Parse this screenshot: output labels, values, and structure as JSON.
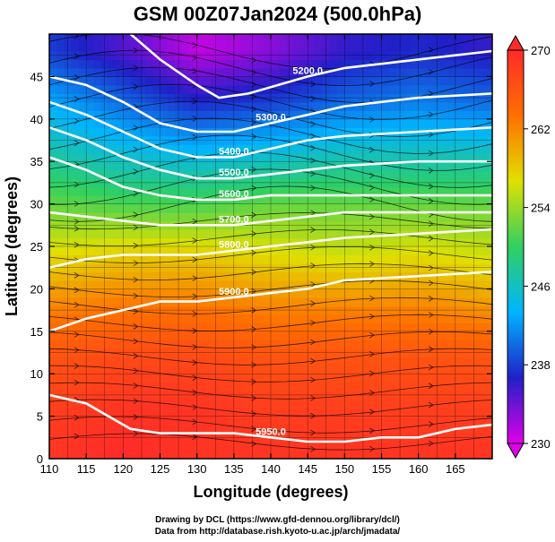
{
  "title": "GSM 00Z07Jan2024 (500.0hPa)",
  "credits": {
    "line1": "Drawing by DCL (https://www.gfd-dennou.org/library/dcl/)",
    "line2": "Data from http://database.rish.kyoto-u.ac.jp/arch/jmadata/"
  },
  "chart_data": {
    "type": "heatmap",
    "title": "GSM 00Z07Jan2024 (500.0hPa)",
    "xlabel": "Longitude (degrees)",
    "ylabel": "Latitude  (degrees)",
    "xlim": [
      110,
      170
    ],
    "ylim": [
      0,
      50
    ],
    "x_ticks": [
      110,
      115,
      120,
      125,
      130,
      135,
      140,
      145,
      150,
      155,
      160,
      165
    ],
    "y_ticks": [
      0,
      5,
      10,
      15,
      20,
      25,
      30,
      35,
      40,
      45
    ],
    "grid": true,
    "colorbar": {
      "range": [
        230,
        270
      ],
      "ticks": [
        230,
        238,
        246,
        254,
        262,
        270
      ],
      "colors": [
        "#e000e8",
        "#2020c8",
        "#00b4ff",
        "#30d060",
        "#e0e000",
        "#ff7000",
        "#ff2a2a"
      ]
    },
    "field": [
      [
        238,
        235,
        231,
        233,
        236,
        237,
        236
      ],
      [
        243,
        240,
        237,
        238,
        240,
        241,
        240
      ],
      [
        247,
        245,
        244,
        245,
        246,
        246,
        246
      ],
      [
        252,
        251,
        251,
        252,
        252,
        252,
        252
      ],
      [
        257,
        258,
        258,
        257,
        256,
        257,
        256
      ],
      [
        262,
        263,
        263,
        262,
        262,
        262,
        261
      ],
      [
        266,
        267,
        267,
        266,
        266,
        266,
        266
      ],
      [
        268,
        269,
        269,
        268,
        268,
        268,
        268
      ],
      [
        269,
        270,
        269,
        269,
        269,
        269,
        269
      ]
    ],
    "field_lats": [
      48,
      42,
      36,
      30,
      24,
      18,
      12,
      6,
      0
    ],
    "field_lons": [
      110,
      120,
      130,
      140,
      150,
      160,
      170
    ],
    "height_contours": [
      {
        "label": "5200.0",
        "points": [
          [
            121,
            50
          ],
          [
            125,
            47
          ],
          [
            130,
            44
          ],
          [
            133,
            42.5
          ],
          [
            137,
            43
          ],
          [
            141,
            44
          ],
          [
            145,
            45
          ],
          [
            150,
            46
          ],
          [
            155,
            46.5
          ],
          [
            160,
            47
          ],
          [
            165,
            47.5
          ],
          [
            170,
            48
          ]
        ]
      },
      {
        "label": "5300.0",
        "points": [
          [
            110,
            45
          ],
          [
            115,
            44
          ],
          [
            120,
            42
          ],
          [
            125,
            39.5
          ],
          [
            130,
            38.5
          ],
          [
            135,
            38.5
          ],
          [
            140,
            39.5
          ],
          [
            145,
            40.5
          ],
          [
            150,
            41.5
          ],
          [
            155,
            42
          ],
          [
            160,
            42.5
          ],
          [
            170,
            43
          ]
        ]
      },
      {
        "label": "5400.0",
        "points": [
          [
            110,
            42
          ],
          [
            115,
            40.5
          ],
          [
            120,
            38.5
          ],
          [
            125,
            36.5
          ],
          [
            130,
            35.5
          ],
          [
            135,
            35.5
          ],
          [
            140,
            36.5
          ],
          [
            145,
            37.5
          ],
          [
            150,
            38
          ],
          [
            160,
            38.5
          ],
          [
            170,
            39
          ]
        ]
      },
      {
        "label": "5500.0",
        "points": [
          [
            110,
            39
          ],
          [
            115,
            37.5
          ],
          [
            120,
            35.5
          ],
          [
            125,
            34
          ],
          [
            130,
            33
          ],
          [
            135,
            33
          ],
          [
            140,
            33.5
          ],
          [
            145,
            34
          ],
          [
            150,
            34.5
          ],
          [
            160,
            35
          ],
          [
            170,
            35
          ]
        ]
      },
      {
        "label": "5600.0",
        "points": [
          [
            110,
            35.5
          ],
          [
            115,
            34
          ],
          [
            120,
            32
          ],
          [
            125,
            31
          ],
          [
            130,
            30.5
          ],
          [
            135,
            30.5
          ],
          [
            140,
            31
          ],
          [
            145,
            31
          ],
          [
            150,
            31
          ],
          [
            160,
            31
          ],
          [
            170,
            31
          ]
        ]
      },
      {
        "label": "5700.0",
        "points": [
          [
            110,
            29
          ],
          [
            115,
            28.5
          ],
          [
            120,
            28
          ],
          [
            125,
            27.5
          ],
          [
            130,
            27.5
          ],
          [
            135,
            27.5
          ],
          [
            140,
            28
          ],
          [
            145,
            28.5
          ],
          [
            150,
            29
          ],
          [
            160,
            29
          ],
          [
            170,
            29
          ]
        ]
      },
      {
        "label": "5800.0",
        "points": [
          [
            110,
            22.5
          ],
          [
            115,
            23.5
          ],
          [
            120,
            24
          ],
          [
            125,
            24
          ],
          [
            130,
            24
          ],
          [
            135,
            24.5
          ],
          [
            140,
            25
          ],
          [
            145,
            25.5
          ],
          [
            150,
            26
          ],
          [
            160,
            26.5
          ],
          [
            170,
            27
          ]
        ]
      },
      {
        "label": "5900.0",
        "points": [
          [
            110,
            15
          ],
          [
            115,
            16.5
          ],
          [
            120,
            17.5
          ],
          [
            125,
            18.5
          ],
          [
            130,
            18.5
          ],
          [
            135,
            19
          ],
          [
            140,
            19.5
          ],
          [
            145,
            20
          ],
          [
            150,
            21
          ],
          [
            160,
            21.5
          ],
          [
            170,
            22
          ]
        ]
      },
      {
        "label": "5950.0",
        "points": [
          [
            110,
            7.5
          ],
          [
            115,
            6.5
          ],
          [
            118,
            5
          ],
          [
            121,
            3.5
          ],
          [
            125,
            3
          ],
          [
            130,
            3
          ],
          [
            135,
            3
          ],
          [
            140,
            2.5
          ],
          [
            145,
            2
          ],
          [
            150,
            2
          ],
          [
            155,
            2.5
          ],
          [
            160,
            2.5
          ],
          [
            165,
            3.5
          ],
          [
            170,
            4
          ]
        ]
      }
    ],
    "contour_labels_shown": [
      "5200.0",
      "5300.0",
      "5400.0",
      "5500.0",
      "5600.0",
      "5700.0",
      "5800.0",
      "5900.0",
      "5950.0"
    ]
  }
}
